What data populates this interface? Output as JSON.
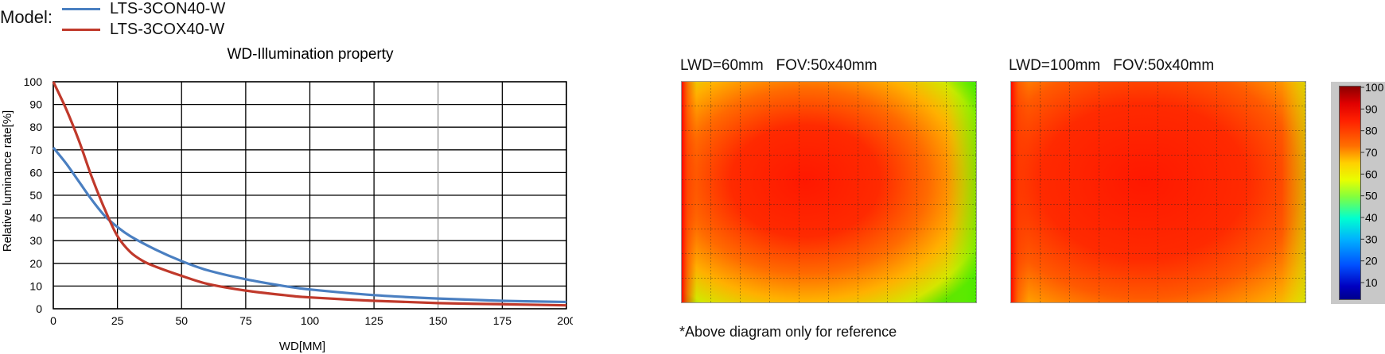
{
  "header": {
    "model_label": "Model:",
    "legend": [
      {
        "name": "LTS-3CON40-W",
        "color": "#4a7fc1"
      },
      {
        "name": "LTS-3COX40-W",
        "color": "#c0392b"
      }
    ]
  },
  "chart_data": {
    "type": "line",
    "title": "WD-Illumination property",
    "xlabel": "WD[MM]",
    "ylabel": "Relative luminance rate[%]",
    "xlim": [
      0,
      200
    ],
    "ylim": [
      0,
      100
    ],
    "xticks": [
      0,
      25,
      50,
      75,
      100,
      125,
      150,
      175,
      200
    ],
    "yticks": [
      0,
      10,
      20,
      30,
      40,
      50,
      60,
      70,
      80,
      90,
      100
    ],
    "grid": true,
    "series": [
      {
        "name": "LTS-3CON40-W",
        "color": "#4a7fc1",
        "x": [
          0,
          5,
          10,
          15,
          20,
          25,
          30,
          40,
          50,
          60,
          75,
          90,
          100,
          125,
          150,
          175,
          200
        ],
        "y": [
          71,
          64,
          56,
          48,
          41,
          36,
          32,
          26,
          21,
          17,
          13,
          10,
          8.5,
          6,
          4.5,
          3.5,
          3
        ]
      },
      {
        "name": "LTS-3COX40-W",
        "color": "#c0392b",
        "x": [
          0,
          5,
          10,
          15,
          20,
          25,
          30,
          35,
          40,
          50,
          60,
          75,
          90,
          100,
          125,
          150,
          175,
          200
        ],
        "y": [
          100,
          88,
          74,
          58,
          44,
          32,
          25,
          21,
          18.5,
          14.5,
          11,
          8,
          6,
          5,
          3.5,
          2.5,
          2,
          1.5
        ]
      }
    ]
  },
  "heatmaps": [
    {
      "title": "LWD=60mm   FOV:50x40mm"
    },
    {
      "title": "LWD=100mm   FOV:50x40mm"
    }
  ],
  "colorbar": {
    "ticks": [
      "100",
      "90",
      "80",
      "70",
      "60",
      "50",
      "40",
      "30",
      "20",
      "10"
    ]
  },
  "note": "*Above diagram only for reference"
}
